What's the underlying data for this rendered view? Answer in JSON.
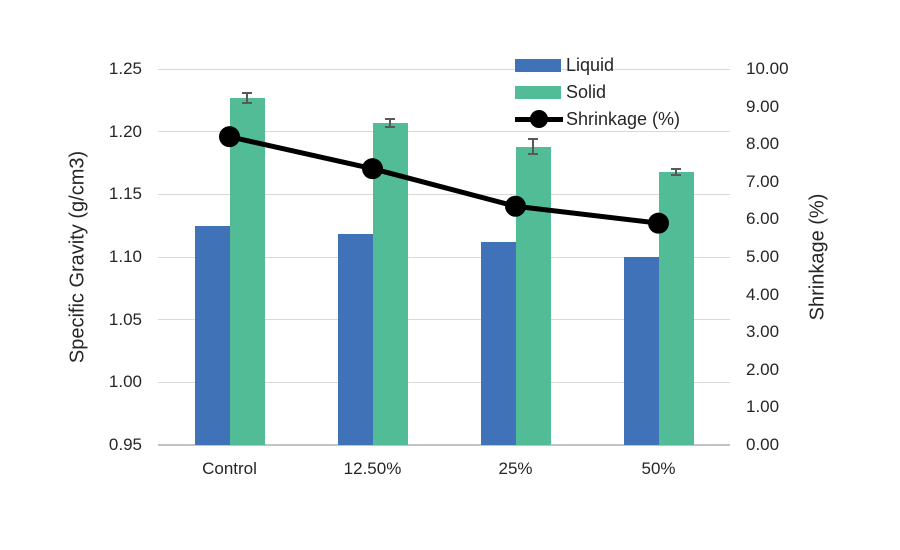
{
  "chart_data": {
    "type": "bar",
    "subtype": "grouped-bars-with-line-overlay",
    "title": "",
    "categories": [
      "Control",
      "12.50%",
      "25%",
      "50%"
    ],
    "series": [
      {
        "name": "Liquid",
        "kind": "bar",
        "axis": "left",
        "color": "#3F72B6",
        "values": [
          1.125,
          1.118,
          1.112,
          1.1
        ]
      },
      {
        "name": "Solid",
        "kind": "bar",
        "axis": "left",
        "color": "#52BC96",
        "values": [
          1.227,
          1.207,
          1.188,
          1.168
        ],
        "error_bars": [
          0.005,
          0.004,
          0.007,
          0.003
        ],
        "error_color": "#595959"
      },
      {
        "name": "Shrinkage (%)",
        "kind": "line",
        "axis": "right",
        "color": "#000000",
        "marker": "circle",
        "values": [
          8.2,
          7.35,
          6.35,
          5.9
        ]
      }
    ],
    "left_axis": {
      "label": "Specific Gravity (g/cm3)",
      "min": 0.95,
      "max": 1.25,
      "step": 0.05,
      "ticks": [
        "1.25",
        "1.20",
        "1.15",
        "1.10",
        "1.05",
        "1.00",
        "0.95"
      ]
    },
    "right_axis": {
      "label": "Shrinkage (%)",
      "min": 0,
      "max": 10,
      "step": 1,
      "ticks": [
        "10.00",
        "9.00",
        "8.00",
        "7.00",
        "6.00",
        "5.00",
        "4.00",
        "3.00",
        "2.00",
        "1.00",
        "0.00"
      ]
    },
    "legend": {
      "position": "top-right",
      "items": [
        "Liquid",
        "Solid",
        "Shrinkage (%)"
      ]
    },
    "grid": {
      "horizontal": true,
      "color": "#D9D9D9"
    },
    "axis_line_color": "#C3C3C3",
    "text_color": "#262626",
    "background": "#FFFFFF"
  }
}
